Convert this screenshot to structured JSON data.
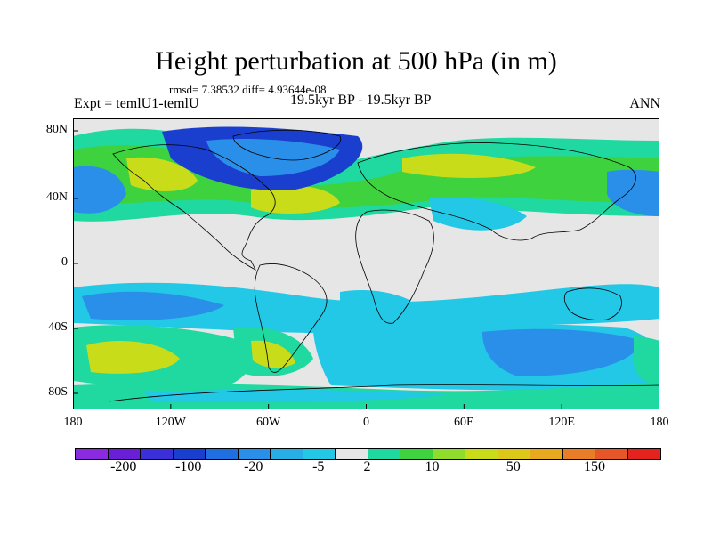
{
  "title": "Height perturbation at 500 hPa (in m)",
  "stats": "rmsd= 7.38532 diff= 4.93644e-08",
  "experiment": "Expt = temlU1-temlU",
  "period": "19.5kyr BP - 19.5kyr BP",
  "season": "ANN",
  "axes": {
    "lat_ticks": [
      "80N",
      "40N",
      "0",
      "40S",
      "80S"
    ],
    "lon_ticks": [
      "180",
      "120W",
      "60W",
      "0",
      "60E",
      "120E",
      "180"
    ]
  },
  "colorbar": {
    "colors": [
      "#8a2be2",
      "#6a1fd6",
      "#3a2fd8",
      "#1a3fcf",
      "#1f6fe0",
      "#2a8fe8",
      "#27aee4",
      "#22c8e6",
      "#e6e6e6",
      "#1fd9a0",
      "#3fd23f",
      "#8fdc2c",
      "#c8dc1a",
      "#ddc81a",
      "#e8a820",
      "#ea7e28",
      "#e65628",
      "#e4231e"
    ],
    "labels": [
      "-200",
      "-100",
      "-20",
      "-5",
      "2",
      "10",
      "50",
      "150"
    ]
  },
  "field_colors": {
    "background": "#e6e6e6",
    "deep_negative": "#1a3fcf",
    "negative": "#2a8fe8",
    "weak_negative": "#22c8e6",
    "weak_positive": "#1fd9a0",
    "positive": "#3fd23f",
    "strong_positive": "#c8dc1a",
    "peak_positive": "#ddc81a"
  }
}
